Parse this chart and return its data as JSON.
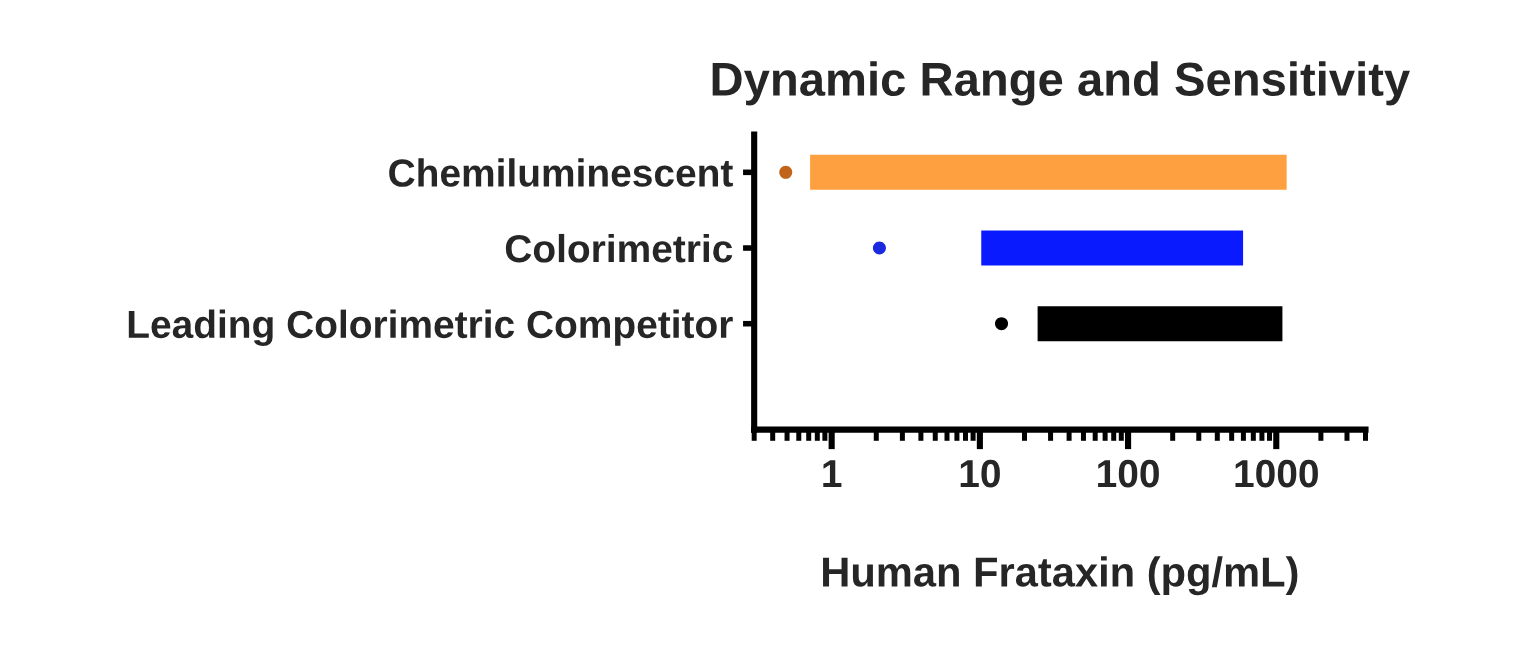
{
  "chart_data": {
    "type": "bar",
    "orientation": "horizontal",
    "title": "Dynamic Range and Sensitivity",
    "xlabel": "Human Frataxin (pg/mL)",
    "categories": [
      "Chemiluminescent",
      "Colorimetric",
      "Leading Colorimetric Competitor"
    ],
    "series": [
      {
        "values": [
          1200,
          600,
          1100
        ],
        "base": [
          0.7,
          10,
          24
        ],
        "colors": [
          "#ffa040",
          "#0a1aff",
          "#000000"
        ]
      },
      {
        "type": "scatter",
        "x": [
          "Chemiluminescent",
          "Colorimetric",
          "Leading Colorimetric Competitor"
        ],
        "values": [
          0.49,
          2.1,
          14
        ],
        "colors": [
          "#c0641a",
          "#1a2ae0",
          "#000000"
        ]
      }
    ],
    "log": "x",
    "xlim": [
      0.3,
      4000
    ],
    "xticks": [
      1,
      10,
      100,
      1000
    ],
    "grid": false,
    "legend": false
  }
}
